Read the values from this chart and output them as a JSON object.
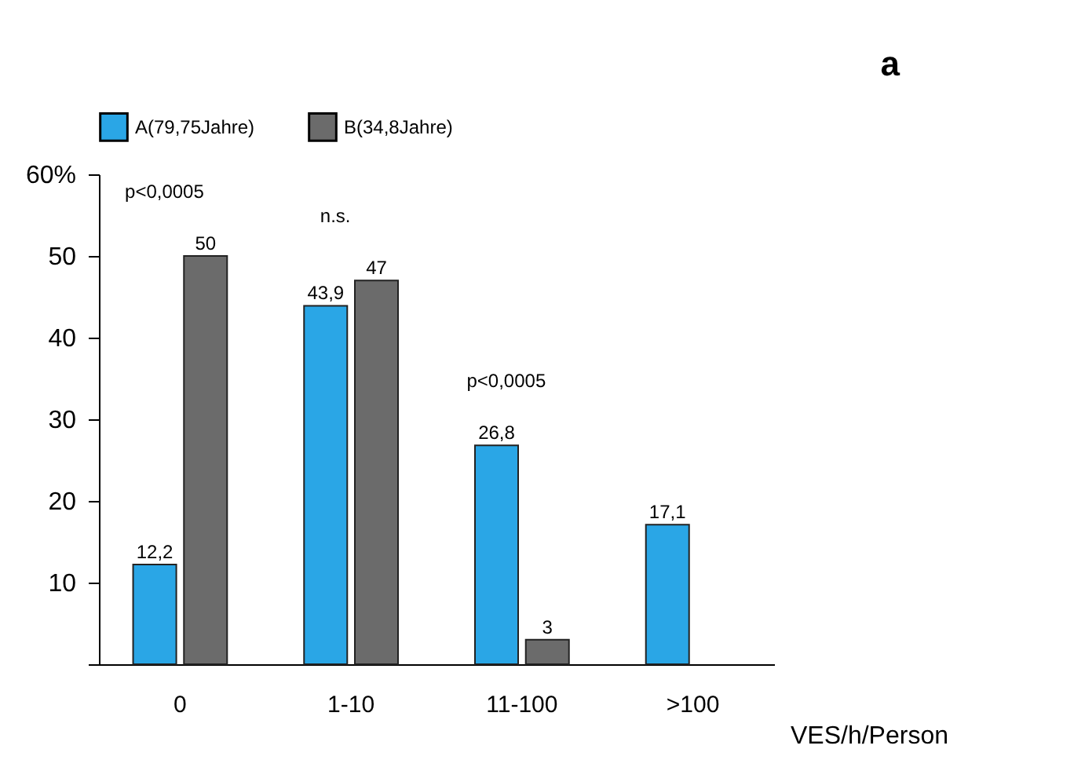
{
  "chart_data": {
    "type": "bar",
    "categories": [
      "0",
      "1-10",
      "11-100",
      ">100"
    ],
    "series": [
      {
        "name": "A(79,75Jahre)",
        "color": "#2aa6e6",
        "values": [
          12.2,
          43.9,
          26.8,
          17.1
        ],
        "value_labels": [
          "12,2",
          "43,9",
          "26,8",
          "17,1"
        ]
      },
      {
        "name": "B(34,8Jahre)",
        "color": "#6b6b6b",
        "values": [
          50,
          47,
          3,
          null
        ],
        "value_labels": [
          "50",
          "47",
          "3",
          null
        ]
      }
    ],
    "xlabel": "VES/h/Person",
    "ylim": [
      0,
      60
    ],
    "yticks": [
      {
        "value": 0,
        "label": null
      },
      10,
      20,
      30,
      40,
      50,
      {
        "value": 60,
        "label": "60%"
      }
    ],
    "annotations": [
      "p<0,0005",
      "n.s.",
      "p<0,0005",
      "a"
    ],
    "grid": false,
    "legend": "top"
  }
}
